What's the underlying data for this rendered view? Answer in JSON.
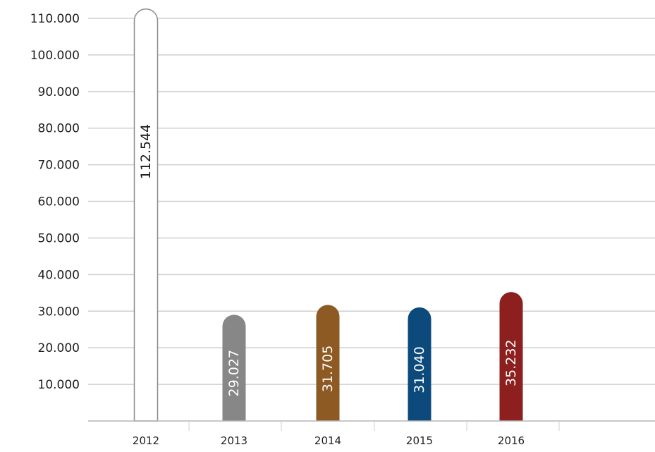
{
  "chart_data": {
    "type": "bar",
    "title": "",
    "xlabel": "",
    "ylabel": "",
    "categories": [
      "2012",
      "2013",
      "2014",
      "2015",
      "2016"
    ],
    "values": [
      112544,
      29027,
      31705,
      31040,
      35232
    ],
    "value_labels": [
      "112.544",
      "29.027",
      "31.705",
      "31.040",
      "35.232"
    ],
    "ylim": [
      0,
      110000
    ],
    "yticks": [
      10000,
      20000,
      30000,
      40000,
      50000,
      60000,
      70000,
      80000,
      90000,
      100000,
      110000
    ],
    "ytick_labels": [
      "10.000",
      "20.000",
      "30.000",
      "40.000",
      "50.000",
      "60.000",
      "70.000",
      "80.000",
      "90.000",
      "100.000",
      "110.000"
    ],
    "grid": true,
    "legend": "none",
    "colors": [
      "#ffffff",
      "#878787",
      "#8e5a24",
      "#0c4a7c",
      "#8d1f1e"
    ],
    "label_colors": [
      "#1a1a1a",
      "#ffffff",
      "#ffffff",
      "#ffffff",
      "#ffffff"
    ],
    "outline_color": "#8a8a8a",
    "grid_color": "#cfcfcf"
  }
}
